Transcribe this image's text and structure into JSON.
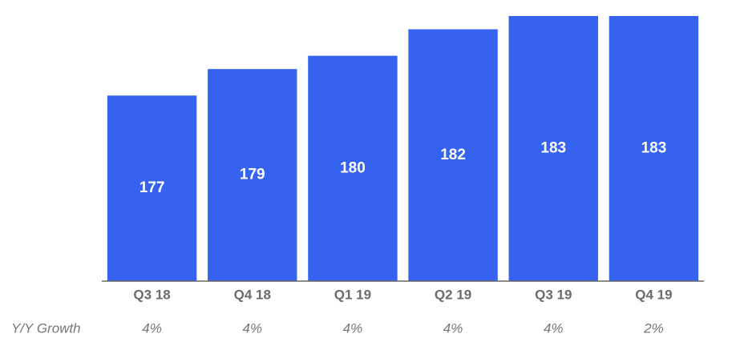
{
  "chart_data": {
    "type": "bar",
    "categories": [
      "Q3 18",
      "Q4 18",
      "Q1 19",
      "Q2 19",
      "Q3 19",
      "Q4 19"
    ],
    "values": [
      177,
      179,
      180,
      182,
      183,
      183
    ],
    "color": "#3563f0",
    "ylim": [
      163,
      183
    ],
    "growth_label": "Y/Y Growth",
    "growth_values": [
      "4%",
      "4%",
      "4%",
      "4%",
      "4%",
      "2%"
    ]
  }
}
